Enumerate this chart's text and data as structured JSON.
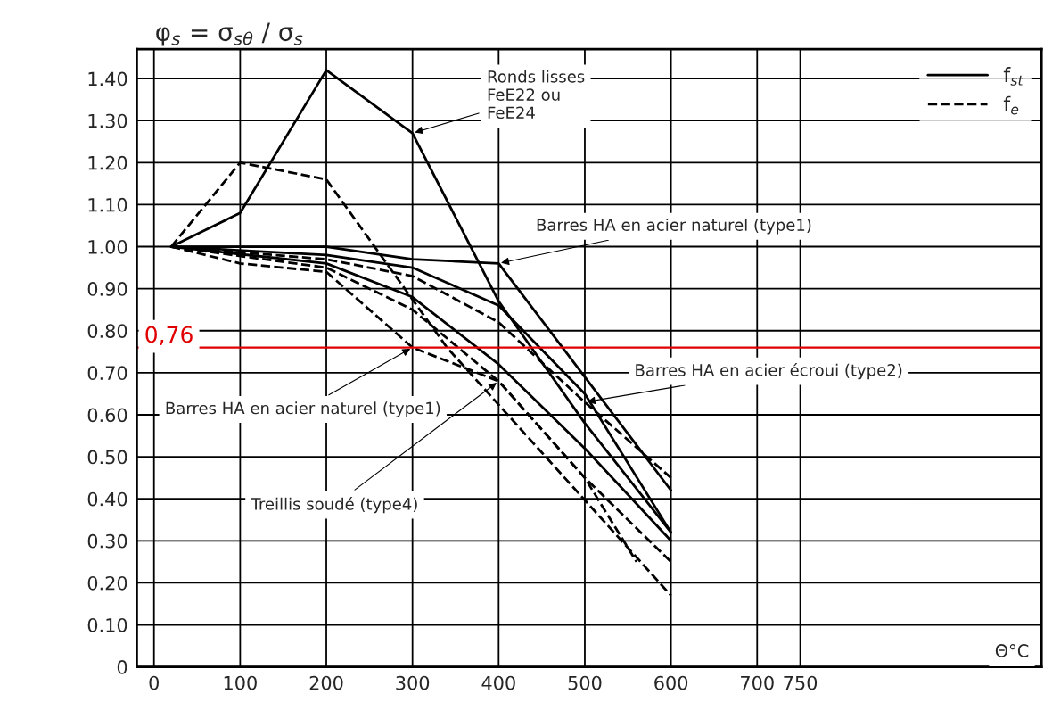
{
  "chart_data": {
    "type": "line",
    "ylabel": "φ$_{s}$ = σ$_{sθ}$ / σ$_{s}$",
    "xlabel": "Θ°C",
    "xlim": [
      -20,
      1030
    ],
    "ylim": [
      0,
      1.47
    ],
    "xticks": [
      0,
      100,
      200,
      300,
      400,
      500,
      600,
      700,
      750
    ],
    "yticks": [
      0,
      {
        "value": 0.1,
        "label": "0.10"
      },
      {
        "value": 0.2,
        "label": "0.20"
      },
      {
        "value": 0.3,
        "label": "0.30"
      },
      {
        "value": 0.4,
        "label": "0.40"
      },
      {
        "value": 0.5,
        "label": "0.50"
      },
      {
        "value": 0.6,
        "label": "0.60"
      },
      {
        "value": 0.7,
        "label": "0.70"
      },
      {
        "value": 0.8,
        "label": "0.80"
      },
      {
        "value": 0.9,
        "label": "0.90"
      },
      {
        "value": 1.0,
        "label": "1.00"
      },
      {
        "value": 1.1,
        "label": "1.10"
      },
      {
        "value": 1.2,
        "label": "1.20"
      },
      {
        "value": 1.3,
        "label": "1.30"
      },
      {
        "value": 1.4,
        "label": "1.40"
      }
    ],
    "grid": true,
    "legend": "top right",
    "marker": "none",
    "series": [
      {
        "name": "f$_{st}$",
        "color": "#000000",
        "line_style": "solid",
        "x": [
          20,
          100,
          200,
          300,
          400,
          500,
          600
        ],
        "values": [
          1.0,
          1.08,
          1.42,
          1.27,
          0.87,
          0.58,
          0.32
        ]
      },
      {
        "name": "f$_{e}$",
        "color": "#000000",
        "line_style": "dashed",
        "x": [
          20,
          100,
          200,
          340,
          600
        ],
        "values": [
          1.0,
          1.2,
          1.16,
          0.76,
          0.17
        ]
      },
      {
        "color": "#000000",
        "line_style": "solid",
        "x": [
          20,
          200,
          300,
          400,
          600
        ],
        "values": [
          1.0,
          1.0,
          0.97,
          0.96,
          0.42
        ]
      },
      {
        "color": "#000000",
        "line_style": "dashed",
        "x": [
          20,
          100,
          200,
          300,
          400,
          500,
          560
        ],
        "values": [
          1.0,
          0.96,
          0.94,
          0.76,
          0.68,
          0.45,
          0.25
        ]
      },
      {
        "color": "#000000",
        "line_style": "solid",
        "x": [
          20,
          200,
          300,
          400,
          500,
          600
        ],
        "values": [
          1.0,
          0.98,
          0.95,
          0.86,
          0.65,
          0.32
        ]
      },
      {
        "color": "#000000",
        "line_style": "dashed",
        "x": [
          20,
          200,
          300,
          400,
          500,
          600
        ],
        "values": [
          1.0,
          0.97,
          0.93,
          0.82,
          0.63,
          0.45
        ]
      },
      {
        "color": "#000000",
        "line_style": "solid",
        "x": [
          20,
          200,
          300,
          400,
          500,
          600
        ],
        "values": [
          1.0,
          0.96,
          0.88,
          0.72,
          0.52,
          0.3
        ]
      },
      {
        "color": "#000000",
        "line_style": "dashed",
        "x": [
          20,
          200,
          300,
          400,
          500,
          600
        ],
        "values": [
          1.0,
          0.95,
          0.85,
          0.68,
          0.45,
          0.25
        ]
      }
    ],
    "ref_lines": [
      {
        "axis": "y",
        "value": 0.76,
        "label": "0,76",
        "color": "#e00000"
      }
    ],
    "annotations": [
      {
        "text": "Ronds lisses\nFeE22 ou\nFeE24",
        "x": 300,
        "y": 1.27
      },
      {
        "text": "Barres HA en acier naturel (type1)",
        "x": 400,
        "y": 0.96
      },
      {
        "text": "Barres HA en acier écroui (type2)",
        "x": 500,
        "y": 0.63
      },
      {
        "text": "Barres HA en acier naturel (type1)",
        "x": 300,
        "y": 0.76
      },
      {
        "text": "Treillis soudé (type4)",
        "x": 400,
        "y": 0.68
      }
    ]
  }
}
